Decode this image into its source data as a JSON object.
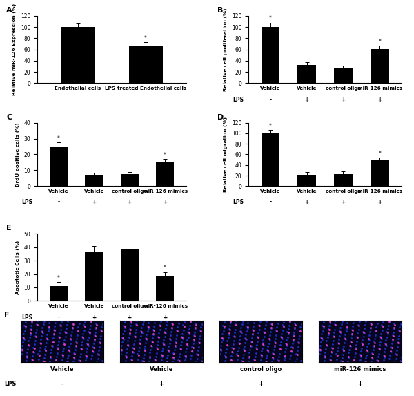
{
  "chart_data": [
    {
      "type": "bar",
      "title": "A",
      "ylabel": "Relative miR-126 Expression (%)",
      "categories": [
        "Endothelial cells",
        "LPS-treated Endothelial cells"
      ],
      "values": [
        100,
        66
      ],
      "errors": [
        6,
        7
      ],
      "significance": [
        null,
        "*"
      ],
      "color": "#000000",
      "ylim": [
        0,
        120
      ],
      "yticks": [
        0,
        20,
        40,
        60,
        80,
        100,
        120
      ]
    },
    {
      "type": "bar",
      "title": "B",
      "ylabel": "Relative cell proliferation (%)",
      "categories": [
        "Vehicle",
        "Vehicle",
        "control oligo",
        "miR-126 mimics"
      ],
      "values": [
        100,
        32,
        26,
        61
      ],
      "errors": [
        8,
        5,
        5,
        6
      ],
      "significance": [
        "*",
        null,
        null,
        "*"
      ],
      "row_label": "LPS",
      "row_values": [
        "-",
        "+",
        "+",
        "+"
      ],
      "color": "#000000",
      "ylim": [
        0,
        120
      ],
      "yticks": [
        0,
        20,
        40,
        60,
        80,
        100,
        120
      ]
    },
    {
      "type": "bar",
      "title": "C",
      "ylabel": "BrdU positive cells (%)",
      "categories": [
        "Vehicle",
        "Vehicle",
        "control oligo",
        "miR-126 mimics"
      ],
      "values": [
        25,
        7.2,
        7.5,
        15
      ],
      "errors": [
        2.5,
        1.2,
        1.3,
        2
      ],
      "significance": [
        "*",
        null,
        null,
        "*"
      ],
      "row_label": "LPS",
      "row_values": [
        "-",
        "+",
        "+",
        "+"
      ],
      "color": "#000000",
      "ylim": [
        0,
        40
      ],
      "yticks": [
        0,
        10,
        20,
        30,
        40
      ]
    },
    {
      "type": "bar",
      "title": "D",
      "ylabel": "Relative cell migration (%)",
      "categories": [
        "Vehicle",
        "Vehicle",
        "control oligo",
        "miR-126 mimics"
      ],
      "values": [
        100,
        22,
        23,
        49
      ],
      "errors": [
        6,
        5,
        5,
        5
      ],
      "significance": [
        "*",
        null,
        null,
        "*"
      ],
      "row_label": "LPS",
      "row_values": [
        "-",
        "+",
        "+",
        "+"
      ],
      "color": "#000000",
      "ylim": [
        0,
        120
      ],
      "yticks": [
        0,
        20,
        40,
        60,
        80,
        100,
        120
      ]
    },
    {
      "type": "bar",
      "title": "E",
      "ylabel": "Apoptotic Cells (%)",
      "categories": [
        "Vehicle",
        "Vehicle",
        "control oligo",
        "miR-126 mimics"
      ],
      "values": [
        11,
        36,
        39,
        18
      ],
      "errors": [
        3,
        5,
        4.5,
        3.5
      ],
      "significance": [
        "*",
        null,
        null,
        "*"
      ],
      "row_label": "LPS",
      "row_values": [
        "-",
        "+",
        "+",
        "+"
      ],
      "color": "#000000",
      "ylim": [
        0,
        50
      ],
      "yticks": [
        0,
        10,
        20,
        30,
        40,
        50
      ]
    }
  ],
  "images": {
    "title": "F",
    "labels": [
      "Vehicle",
      "Vehicle",
      "control oligo",
      "miR-126 mimics"
    ],
    "row_label": "LPS",
    "row_values": [
      "-",
      "+",
      "+",
      "+"
    ]
  }
}
